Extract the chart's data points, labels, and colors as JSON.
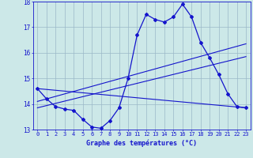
{
  "xlabel": "Graphe des températures (°C)",
  "hours": [
    0,
    1,
    2,
    3,
    4,
    5,
    6,
    7,
    8,
    9,
    10,
    11,
    12,
    13,
    14,
    15,
    16,
    17,
    18,
    19,
    20,
    21,
    22,
    23
  ],
  "temp": [
    14.6,
    14.2,
    13.9,
    13.8,
    13.75,
    13.4,
    13.1,
    13.05,
    13.35,
    13.85,
    15.0,
    16.7,
    17.5,
    17.3,
    17.2,
    17.4,
    17.9,
    17.4,
    16.4,
    15.8,
    15.15,
    14.4,
    13.9,
    13.85
  ],
  "line_color": "#1414cc",
  "bg_color": "#cce8e8",
  "grid_color": "#9ab8c8",
  "ylim": [
    13,
    18
  ],
  "yticks": [
    13,
    14,
    15,
    16,
    17,
    18
  ],
  "xticks": [
    0,
    1,
    2,
    3,
    4,
    5,
    6,
    7,
    8,
    9,
    10,
    11,
    12,
    13,
    14,
    15,
    16,
    17,
    18,
    19,
    20,
    21,
    22,
    23
  ],
  "trend1_x": [
    0,
    23
  ],
  "trend1_y": [
    14.6,
    13.85
  ],
  "trend2_x": [
    0,
    23
  ],
  "trend2_y": [
    14.1,
    16.35
  ],
  "trend3_x": [
    0,
    23
  ],
  "trend3_y": [
    13.85,
    15.85
  ]
}
